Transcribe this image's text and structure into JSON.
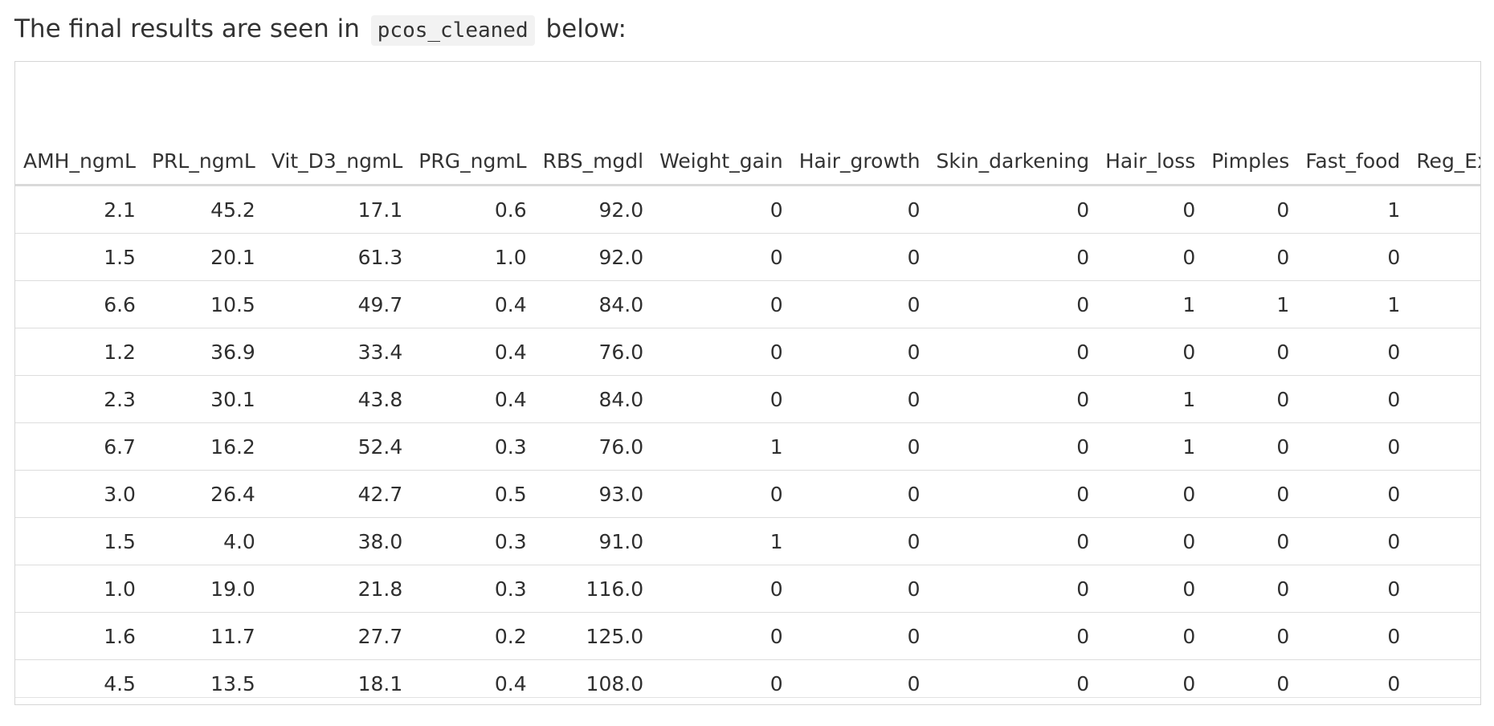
{
  "intro": {
    "prefix": "The final results are seen in",
    "code": "pcos_cleaned",
    "suffix": "below:"
  },
  "table": {
    "columns": [
      "AMH_ngmL",
      "PRL_ngmL",
      "Vit_D3_ngmL",
      "PRG_ngmL",
      "RBS_mgdl",
      "Weight_gain",
      "Hair_growth",
      "Skin_darkening",
      "Hair_loss",
      "Pimples",
      "Fast_food",
      "Reg_Exerci"
    ],
    "rows": [
      [
        "2.1",
        "45.2",
        "17.1",
        "0.6",
        "92.0",
        "0",
        "0",
        "0",
        "0",
        "0",
        "1",
        ""
      ],
      [
        "1.5",
        "20.1",
        "61.3",
        "1.0",
        "92.0",
        "0",
        "0",
        "0",
        "0",
        "0",
        "0",
        ""
      ],
      [
        "6.6",
        "10.5",
        "49.7",
        "0.4",
        "84.0",
        "0",
        "0",
        "0",
        "1",
        "1",
        "1",
        ""
      ],
      [
        "1.2",
        "36.9",
        "33.4",
        "0.4",
        "76.0",
        "0",
        "0",
        "0",
        "0",
        "0",
        "0",
        ""
      ],
      [
        "2.3",
        "30.1",
        "43.8",
        "0.4",
        "84.0",
        "0",
        "0",
        "0",
        "1",
        "0",
        "0",
        ""
      ],
      [
        "6.7",
        "16.2",
        "52.4",
        "0.3",
        "76.0",
        "1",
        "0",
        "0",
        "1",
        "0",
        "0",
        ""
      ],
      [
        "3.0",
        "26.4",
        "42.7",
        "0.5",
        "93.0",
        "0",
        "0",
        "0",
        "0",
        "0",
        "0",
        ""
      ],
      [
        "1.5",
        "4.0",
        "38.0",
        "0.3",
        "91.0",
        "1",
        "0",
        "0",
        "0",
        "0",
        "0",
        ""
      ],
      [
        "1.0",
        "19.0",
        "21.8",
        "0.3",
        "116.0",
        "0",
        "0",
        "0",
        "0",
        "0",
        "0",
        ""
      ],
      [
        "1.6",
        "11.7",
        "27.7",
        "0.2",
        "125.0",
        "0",
        "0",
        "0",
        "0",
        "0",
        "0",
        ""
      ],
      [
        "4.5",
        "13.5",
        "18.1",
        "0.4",
        "108.0",
        "0",
        "0",
        "0",
        "0",
        "0",
        "0",
        ""
      ]
    ]
  }
}
